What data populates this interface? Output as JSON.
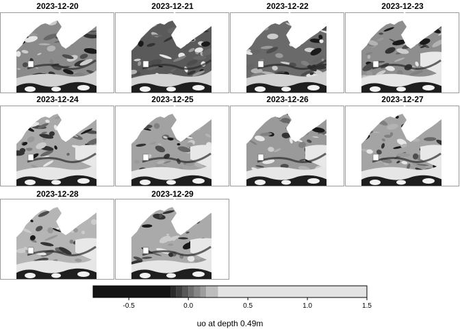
{
  "chart_data": {
    "type": "heatmap",
    "variable": "uo at depth 0.49m",
    "panels": [
      {
        "title": "2023-12-20"
      },
      {
        "title": "2023-12-21"
      },
      {
        "title": "2023-12-22"
      },
      {
        "title": "2023-12-23"
      },
      {
        "title": "2023-12-24"
      },
      {
        "title": "2023-12-25"
      },
      {
        "title": "2023-12-26"
      },
      {
        "title": "2023-12-27"
      },
      {
        "title": "2023-12-28"
      },
      {
        "title": "2023-12-29"
      }
    ],
    "colorbar": {
      "label": "uo at depth 0.49m",
      "range": [
        -0.8,
        1.5
      ],
      "ticks": [
        -0.5,
        0.0,
        0.5,
        1.0,
        1.5
      ],
      "tick_labels": [
        "-0.5",
        "0.0",
        "0.5",
        "1.0",
        "1.5"
      ],
      "bins": [
        {
          "from": -0.8,
          "to": -0.15,
          "color": "#141414"
        },
        {
          "from": -0.15,
          "to": -0.1,
          "color": "#2b2b2b"
        },
        {
          "from": -0.1,
          "to": -0.05,
          "color": "#404040"
        },
        {
          "from": -0.05,
          "to": 0.0,
          "color": "#575757"
        },
        {
          "from": 0.0,
          "to": 0.05,
          "color": "#6e6e6e"
        },
        {
          "from": 0.05,
          "to": 0.1,
          "color": "#868686"
        },
        {
          "from": 0.1,
          "to": 0.15,
          "color": "#9e9e9e"
        },
        {
          "from": 0.15,
          "to": 0.25,
          "color": "#bdbdbd"
        },
        {
          "from": 0.25,
          "to": 1.5,
          "color": "#e3e3e3"
        }
      ]
    }
  }
}
